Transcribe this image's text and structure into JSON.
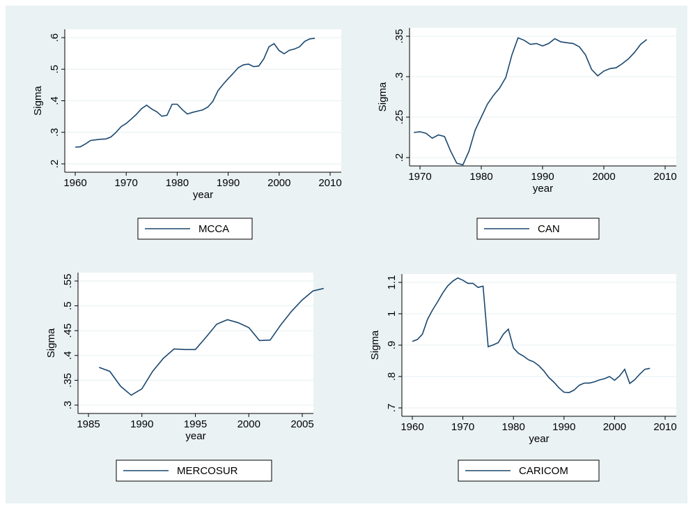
{
  "chart_data": [
    {
      "type": "line",
      "xlabel": "year",
      "ylabel": "Sigma",
      "x": [
        1960,
        1961,
        1962,
        1963,
        1964,
        1965,
        1966,
        1967,
        1968,
        1969,
        1970,
        1971,
        1972,
        1973,
        1974,
        1975,
        1976,
        1977,
        1978,
        1979,
        1980,
        1981,
        1982,
        1983,
        1984,
        1985,
        1986,
        1987,
        1988,
        1989,
        1990,
        1991,
        1992,
        1993,
        1994,
        1995,
        1996,
        1997,
        1998,
        1999,
        2000,
        2001,
        2002,
        2003,
        2004,
        2005,
        2006,
        2007
      ],
      "series": [
        {
          "name": "MCCA",
          "color": "#1a476f",
          "values": [
            0.253,
            0.254,
            0.263,
            0.274,
            0.276,
            0.278,
            0.279,
            0.285,
            0.3,
            0.318,
            0.328,
            0.342,
            0.357,
            0.375,
            0.386,
            0.374,
            0.365,
            0.351,
            0.354,
            0.389,
            0.389,
            0.372,
            0.358,
            0.363,
            0.367,
            0.371,
            0.38,
            0.398,
            0.432,
            0.452,
            0.47,
            0.487,
            0.505,
            0.514,
            0.516,
            0.508,
            0.51,
            0.533,
            0.571,
            0.581,
            0.559,
            0.549,
            0.56,
            0.564,
            0.571,
            0.588,
            0.596,
            0.598
          ]
        }
      ],
      "xlim": [
        1960,
        2010
      ],
      "xticks": [
        1960,
        1970,
        1980,
        1990,
        2000,
        2010
      ],
      "ylim": [
        0.2,
        0.6
      ],
      "yticks": [
        {
          "value": 0.2,
          "label": ".2"
        },
        {
          "value": 0.3,
          "label": ".3"
        },
        {
          "value": 0.4,
          "label": ".4"
        },
        {
          "value": 0.5,
          "label": ".5"
        },
        {
          "value": 0.6,
          "label": ".6"
        }
      ],
      "grid": true
    },
    {
      "type": "line",
      "xlabel": "year",
      "ylabel": "Sigma",
      "x": [
        1969,
        1970,
        1971,
        1972,
        1973,
        1974,
        1975,
        1976,
        1977,
        1978,
        1979,
        1980,
        1981,
        1982,
        1983,
        1984,
        1985,
        1986,
        1987,
        1988,
        1989,
        1990,
        1991,
        1992,
        1993,
        1994,
        1995,
        1996,
        1997,
        1998,
        1999,
        2000,
        2001,
        2002,
        2003,
        2004,
        2005,
        2006,
        2007
      ],
      "series": [
        {
          "name": "CAN",
          "color": "#1a476f",
          "values": [
            0.231,
            0.232,
            0.23,
            0.224,
            0.228,
            0.226,
            0.208,
            0.193,
            0.191,
            0.208,
            0.234,
            0.25,
            0.266,
            0.277,
            0.286,
            0.299,
            0.327,
            0.348,
            0.345,
            0.34,
            0.341,
            0.338,
            0.341,
            0.347,
            0.343,
            0.342,
            0.341,
            0.337,
            0.327,
            0.309,
            0.301,
            0.307,
            0.31,
            0.311,
            0.316,
            0.322,
            0.33,
            0.34,
            0.346
          ]
        }
      ],
      "xlim": [
        1970,
        2010
      ],
      "xticks": [
        1970,
        1980,
        1990,
        2000,
        2010
      ],
      "ylim": [
        0.2,
        0.35
      ],
      "yticks": [
        {
          "value": 0.2,
          "label": ".2"
        },
        {
          "value": 0.25,
          "label": ".25"
        },
        {
          "value": 0.3,
          "label": ".3"
        },
        {
          "value": 0.35,
          "label": ".35"
        }
      ],
      "grid": true
    },
    {
      "type": "line",
      "xlabel": "year",
      "ylabel": "Sigma",
      "x": [
        1986,
        1987,
        1988,
        1989,
        1990,
        1991,
        1992,
        1993,
        1994,
        1995,
        1996,
        1997,
        1998,
        1999,
        2000,
        2001,
        2002,
        2003,
        2004,
        2005,
        2006,
        2007
      ],
      "series": [
        {
          "name": "MERCOSUR",
          "color": "#1a476f",
          "values": [
            0.376,
            0.368,
            0.338,
            0.32,
            0.333,
            0.368,
            0.394,
            0.413,
            0.412,
            0.412,
            0.437,
            0.463,
            0.472,
            0.466,
            0.456,
            0.43,
            0.431,
            0.462,
            0.489,
            0.512,
            0.53,
            0.535
          ]
        }
      ],
      "xlim": [
        1985,
        2005
      ],
      "xticks": [
        1985,
        1990,
        1995,
        2000,
        2005
      ],
      "ylim": [
        0.3,
        0.55
      ],
      "yticks": [
        {
          "value": 0.3,
          "label": ".3"
        },
        {
          "value": 0.35,
          "label": ".35"
        },
        {
          "value": 0.4,
          "label": ".4"
        },
        {
          "value": 0.45,
          "label": ".45"
        },
        {
          "value": 0.5,
          "label": ".5"
        },
        {
          "value": 0.55,
          "label": ".55"
        }
      ],
      "grid": true
    },
    {
      "type": "line",
      "xlabel": "year",
      "ylabel": "Sigma",
      "x": [
        1960,
        1961,
        1962,
        1963,
        1964,
        1965,
        1966,
        1967,
        1968,
        1969,
        1970,
        1971,
        1972,
        1973,
        1974,
        1975,
        1976,
        1977,
        1978,
        1979,
        1980,
        1981,
        1982,
        1983,
        1984,
        1985,
        1986,
        1987,
        1988,
        1989,
        1990,
        1991,
        1992,
        1993,
        1994,
        1995,
        1996,
        1997,
        1998,
        1999,
        2000,
        2001,
        2002,
        2003,
        2004,
        2005,
        2006,
        2007
      ],
      "series": [
        {
          "name": "CARICOM",
          "color": "#1a476f",
          "values": [
            0.912,
            0.918,
            0.935,
            0.982,
            1.012,
            1.038,
            1.066,
            1.089,
            1.104,
            1.114,
            1.107,
            1.097,
            1.097,
            1.084,
            1.088,
            0.895,
            0.901,
            0.908,
            0.935,
            0.951,
            0.891,
            0.874,
            0.865,
            0.853,
            0.847,
            0.835,
            0.818,
            0.797,
            0.782,
            0.764,
            0.75,
            0.749,
            0.757,
            0.772,
            0.779,
            0.779,
            0.783,
            0.789,
            0.793,
            0.8,
            0.788,
            0.802,
            0.823,
            0.778,
            0.79,
            0.808,
            0.823,
            0.826
          ]
        }
      ],
      "xlim": [
        1960,
        2010
      ],
      "xticks": [
        1960,
        1970,
        1980,
        1990,
        2000,
        2010
      ],
      "ylim": [
        0.7,
        1.1
      ],
      "yticks": [
        {
          "value": 0.7,
          "label": ".7"
        },
        {
          "value": 0.8,
          "label": ".8"
        },
        {
          "value": 0.9,
          "label": ".9"
        },
        1,
        1.1
      ],
      "grid": true
    }
  ]
}
